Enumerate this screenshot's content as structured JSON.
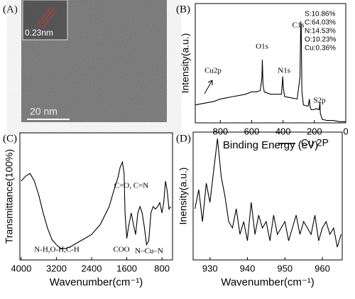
{
  "image_panel": {
    "label": "(A)",
    "lattice_label": "0.23nm",
    "scale_bar": "20 nm"
  },
  "chart_data": [
    {
      "type": "line",
      "label": "(B)",
      "xlabel": "Binding Energy (eV)",
      "ylabel": "Intensity(a.u.)",
      "xlim": [
        960,
        0
      ],
      "ylim": [
        0,
        100
      ],
      "xticks": [
        800,
        600,
        400,
        200,
        0
      ],
      "color": "#000000",
      "x": [
        960,
        920,
        880,
        840,
        800,
        760,
        720,
        680,
        640,
        600,
        570,
        545,
        535,
        532,
        528,
        520,
        480,
        440,
        410,
        402,
        398,
        390,
        350,
        310,
        292,
        287,
        284,
        280,
        270,
        240,
        232,
        228,
        220,
        200,
        190,
        170,
        165,
        162,
        150,
        120,
        80,
        40,
        0
      ],
      "values": [
        15,
        16,
        17,
        18,
        20,
        21,
        22,
        23,
        24,
        26,
        26,
        27,
        38,
        53,
        32,
        26,
        24,
        24,
        24,
        39,
        29,
        22,
        21,
        20,
        38,
        85,
        79,
        26,
        15,
        14,
        20,
        14,
        11,
        11,
        12,
        11,
        17,
        8,
        3,
        2,
        2,
        1,
        1
      ],
      "annotations": [
        "Cu2p",
        "O1s",
        "N1s",
        "C1s",
        "S2p"
      ],
      "composition": [
        "S:10.86%",
        "C:64.03%",
        "N:14.53%",
        "O:10.23%",
        "Cu:0.36%"
      ]
    },
    {
      "type": "line",
      "label": "(C)",
      "xlabel": "Wavenumber(cm⁻¹)",
      "ylabel": "Transmittance(100%)",
      "xlim": [
        4030,
        560
      ],
      "ylim": [
        0,
        100
      ],
      "xticks": [
        4000,
        3200,
        2400,
        1600,
        800
      ],
      "color": "#000000",
      "x": [
        4000,
        3900,
        3800,
        3700,
        3600,
        3500,
        3400,
        3300,
        3200,
        3100,
        3000,
        2900,
        2800,
        2600,
        2400,
        2200,
        2000,
        1900,
        1800,
        1750,
        1700,
        1660,
        1640,
        1600,
        1560,
        1500,
        1450,
        1400,
        1350,
        1300,
        1250,
        1200,
        1150,
        1100,
        1050,
        1000,
        950,
        900,
        850,
        800,
        760,
        720,
        680,
        640,
        600
      ],
      "values": [
        62,
        66,
        68,
        62,
        51,
        37,
        25,
        16,
        12,
        9,
        9,
        10,
        12,
        16,
        20,
        28,
        42,
        54,
        65,
        73,
        77,
        68,
        37,
        17,
        26,
        37,
        28,
        20,
        37,
        42,
        37,
        26,
        12,
        15,
        37,
        42,
        40,
        42,
        45,
        37,
        45,
        62,
        54,
        40,
        42
      ],
      "annotations": [
        "N-H,O-H,C-H",
        "COO",
        "C=O, C=N",
        "N–Cu–N"
      ]
    },
    {
      "type": "line",
      "label": "(D)",
      "xlabel": "Wavenumber(cm⁻¹)",
      "ylabel": "Inensity(a.u.)",
      "xlim": [
        925.5,
        965.3
      ],
      "ylim": [
        0,
        100
      ],
      "xticks": [
        930,
        940,
        950,
        960
      ],
      "legend": "upper right",
      "x": [
        926,
        927,
        928,
        929,
        930,
        931,
        932,
        933,
        934,
        935,
        936,
        937,
        938,
        939,
        940,
        941,
        942,
        943,
        944,
        945,
        946,
        947,
        948,
        949,
        950,
        951,
        952,
        953,
        954,
        955,
        956,
        957,
        958,
        959,
        960,
        961,
        962,
        963,
        964,
        965
      ],
      "series": [
        {
          "name": "Cu 2P",
          "color": "#000000",
          "values": [
            40,
            55,
            30,
            60,
            45,
            70,
            95,
            65,
            50,
            30,
            25,
            40,
            20,
            30,
            15,
            45,
            20,
            35,
            25,
            30,
            15,
            35,
            20,
            25,
            30,
            15,
            25,
            35,
            20,
            30,
            25,
            20,
            35,
            15,
            25,
            30,
            20,
            25,
            10,
            20
          ]
        }
      ]
    }
  ]
}
